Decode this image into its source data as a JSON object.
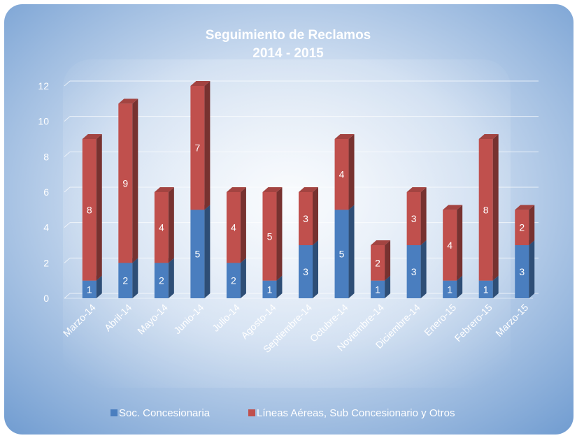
{
  "chart_data": {
    "type": "bar",
    "stacked": true,
    "three_d": true,
    "title": "Seguimiento de Reclamos",
    "subtitle": "2014 - 2015",
    "categories": [
      "Marzo-14",
      "Abril-14",
      "Mayo-14",
      "Junio-14",
      "Julio-14",
      "Agosto-14",
      "Septiembre-14",
      "Octubre-14",
      "Noviembre-14",
      "Diciembre-14",
      "Enero-15",
      "Febrero-15",
      "Marzo-15"
    ],
    "series": [
      {
        "name": "Soc. Concesionaria",
        "color": "#4a7ebf",
        "values": [
          1,
          2,
          2,
          5,
          2,
          1,
          3,
          5,
          1,
          3,
          1,
          1,
          3
        ]
      },
      {
        "name": "Líneas Aéreas, Sub Concesionario y Otros",
        "color": "#c0504d",
        "values": [
          8,
          9,
          4,
          7,
          4,
          5,
          3,
          4,
          2,
          3,
          4,
          8,
          2
        ]
      }
    ],
    "ylim": [
      0,
      12
    ],
    "yticks": [
      "0",
      "2",
      "4",
      "6",
      "8",
      "10",
      "12"
    ],
    "grid": true,
    "legend_position": "bottom",
    "background": "#c5d6ec"
  }
}
